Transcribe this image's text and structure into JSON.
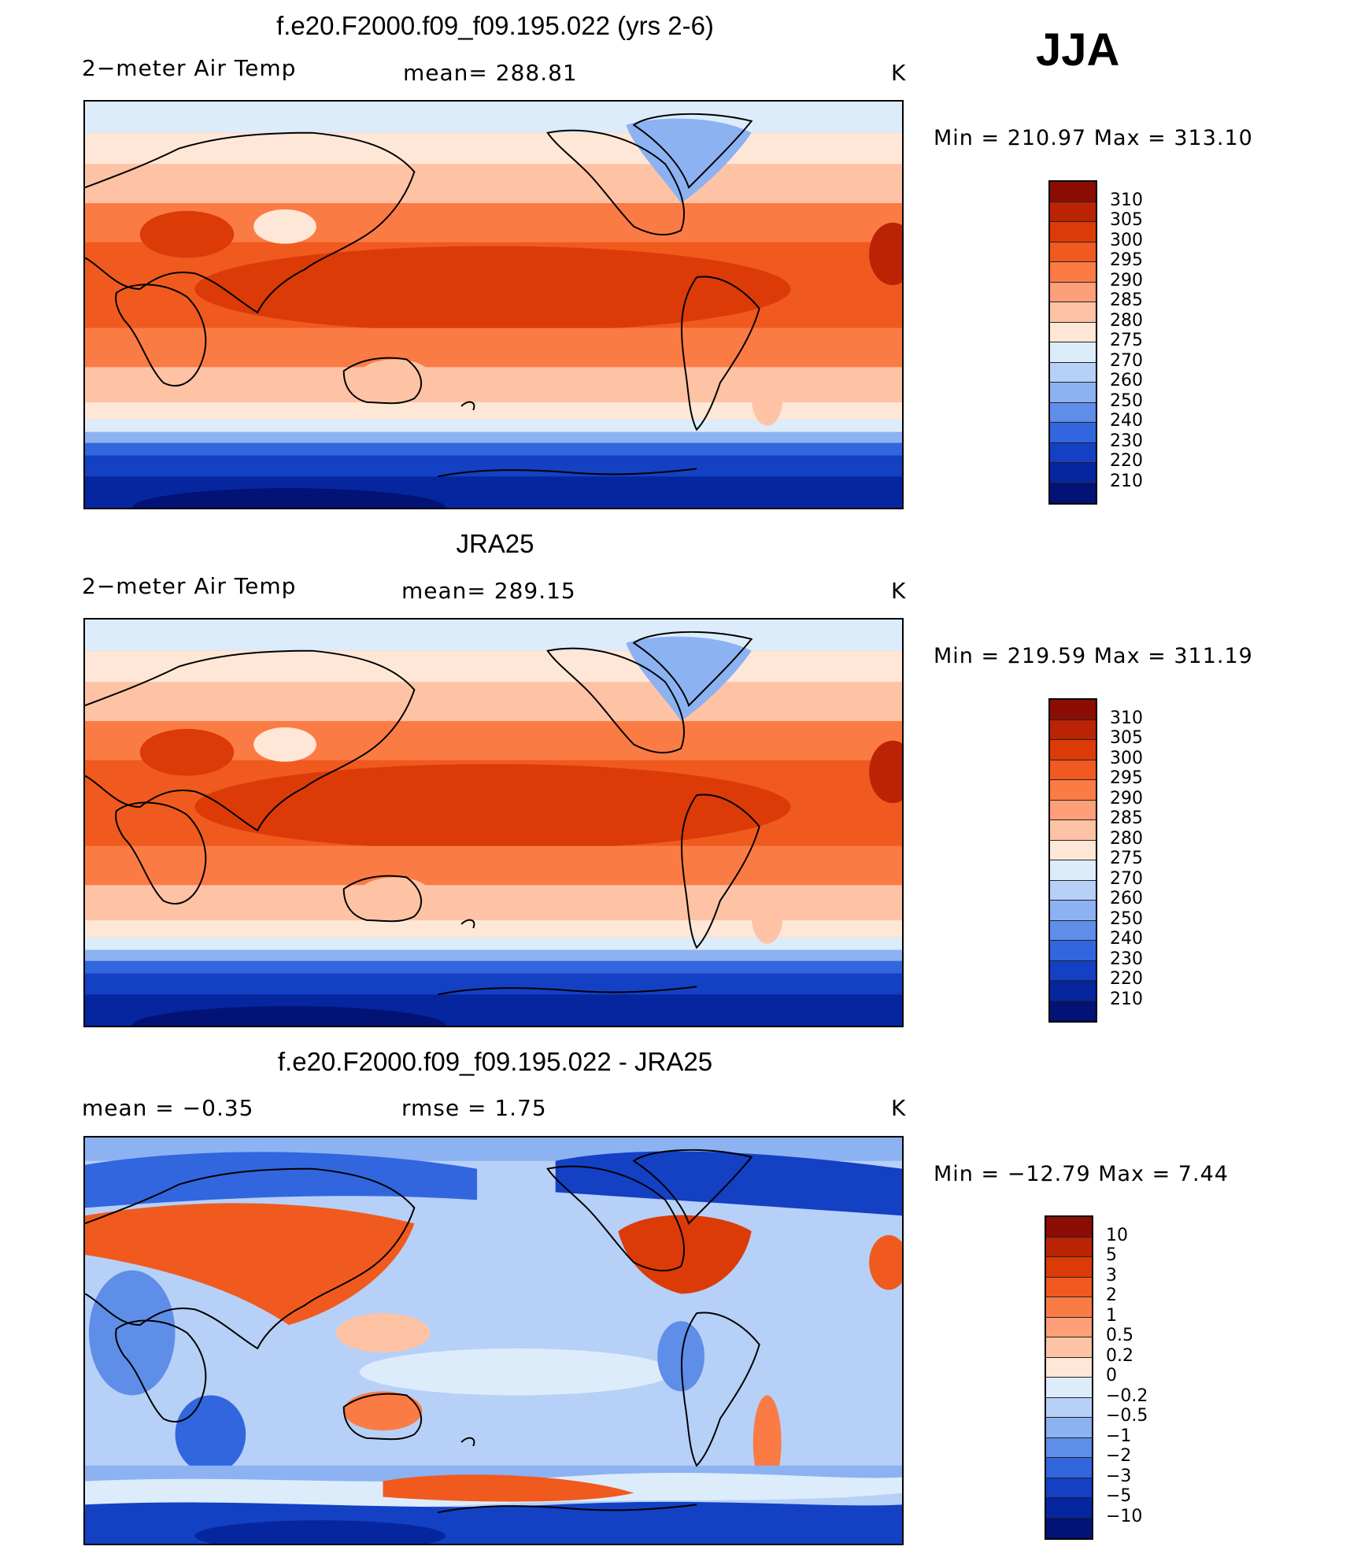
{
  "season": "JJA",
  "panels": [
    {
      "title": "f.e20.F2000.f09_f09.195.022 (yrs 2-6)",
      "left": "2−meter Air Temp",
      "center": "mean=  288.81",
      "right": "K",
      "minmax": "Min  =  210.97  Max  =  313.10",
      "kind": "abs"
    },
    {
      "title": "JRA25",
      "left": "2−meter Air Temp",
      "center": "mean=  289.15",
      "right": "K",
      "minmax": "Min  =  219.59  Max  =  311.19",
      "kind": "abs"
    },
    {
      "title": "f.e20.F2000.f09_f09.195.022 - JRA25",
      "left": "mean  =     −0.35",
      "center": "rmse  =      1.75",
      "right": "K",
      "minmax": "Min  =  −12.79  Max  =       7.44",
      "kind": "diff"
    }
  ],
  "colorbars": {
    "abs": {
      "labels": [
        "310",
        "305",
        "300",
        "295",
        "290",
        "285",
        "280",
        "275",
        "270",
        "260",
        "250",
        "240",
        "230",
        "220",
        "210"
      ],
      "colors": [
        "#8b0d03",
        "#bb2305",
        "#dc3b08",
        "#f05a1e",
        "#fb7b45",
        "#fd9f78",
        "#fec3a5",
        "#ffe7d7",
        "#dcecfb",
        "#b7d0f7",
        "#8cb2f2",
        "#5e8ee8",
        "#3166de",
        "#1440c4",
        "#0626a0",
        "#021275"
      ]
    },
    "diff": {
      "labels": [
        "10",
        "5",
        "3",
        "2",
        "1",
        "0.5",
        "0.2",
        "0",
        "−0.2",
        "−0.5",
        "−1",
        "−2",
        "−3",
        "−5",
        "−10"
      ],
      "colors": [
        "#8b0d03",
        "#bb2305",
        "#dc3b08",
        "#f05a1e",
        "#fb7b45",
        "#fd9f78",
        "#fec3a5",
        "#ffe7d7",
        "#dcecfb",
        "#b7d0f7",
        "#8cb2f2",
        "#5e8ee8",
        "#3166de",
        "#1440c4",
        "#0626a0",
        "#021275"
      ]
    }
  }
}
